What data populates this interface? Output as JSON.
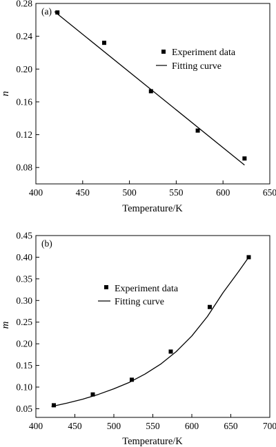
{
  "chart_data": [
    {
      "type": "scatter",
      "panel_label": "(a)",
      "xlabel": "Temperature/K",
      "ylabel": "n",
      "xlim": [
        400,
        650
      ],
      "ylim": [
        0.06,
        0.28
      ],
      "xticks": [
        400,
        450,
        500,
        550,
        600,
        650
      ],
      "yticks": [
        0.08,
        0.12,
        0.16,
        0.2,
        0.24,
        0.28
      ],
      "xtick_labels": [
        "400",
        "450",
        "500",
        "550",
        "600",
        "650"
      ],
      "ytick_labels": [
        "0.08",
        "0.12",
        "0.16",
        "0.20",
        "0.24",
        "0.28"
      ],
      "grid": false,
      "legend_position": "top-right",
      "series": [
        {
          "name": "Experiment data",
          "kind": "markers",
          "marker": "square",
          "x": [
            423,
            473,
            523,
            573,
            623
          ],
          "y": [
            0.269,
            0.232,
            0.173,
            0.125,
            0.091
          ]
        },
        {
          "name": "Fitting curve",
          "kind": "line",
          "fit": "linear",
          "x": [
            420,
            623
          ],
          "y": [
            0.27,
            0.083
          ]
        }
      ]
    },
    {
      "type": "scatter",
      "panel_label": "(b)",
      "xlabel": "Temperature/K",
      "ylabel": "m",
      "xlim": [
        400,
        700
      ],
      "ylim": [
        0.03,
        0.45
      ],
      "xticks": [
        400,
        450,
        500,
        550,
        600,
        650,
        700
      ],
      "yticks": [
        0.05,
        0.1,
        0.15,
        0.2,
        0.25,
        0.3,
        0.35,
        0.4,
        0.45
      ],
      "xtick_labels": [
        "400",
        "450",
        "500",
        "550",
        "600",
        "650",
        "700"
      ],
      "ytick_labels": [
        "0.05",
        "0.10",
        "0.15",
        "0.20",
        "0.25",
        "0.30",
        "0.35",
        "0.40",
        "0.45"
      ],
      "grid": false,
      "legend_position": "upper-left",
      "series": [
        {
          "name": "Experiment data",
          "kind": "markers",
          "marker": "square",
          "x": [
            423,
            473,
            523,
            573,
            623,
            673
          ],
          "y": [
            0.058,
            0.083,
            0.117,
            0.182,
            0.285,
            0.4
          ]
        },
        {
          "name": "Fitting curve",
          "kind": "line",
          "fit": "exponential",
          "x": [
            420,
            440,
            460,
            480,
            500,
            520,
            540,
            560,
            580,
            600,
            620,
            640,
            660,
            673
          ],
          "y": [
            0.055,
            0.063,
            0.072,
            0.083,
            0.096,
            0.111,
            0.13,
            0.153,
            0.182,
            0.218,
            0.263,
            0.318,
            0.367,
            0.4
          ]
        }
      ]
    }
  ]
}
